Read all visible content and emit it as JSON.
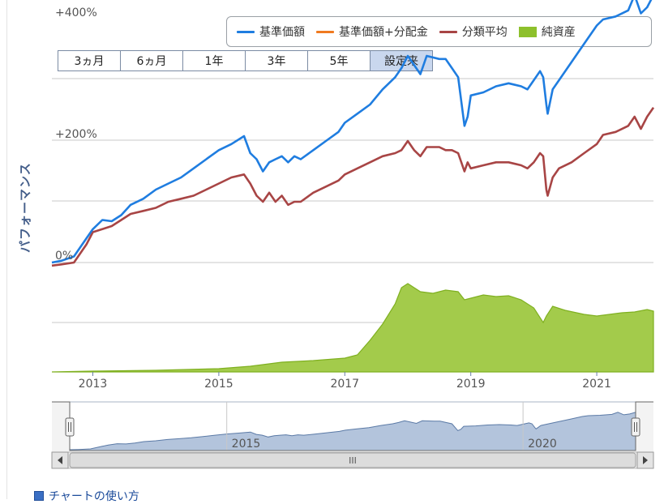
{
  "legend": {
    "items": [
      {
        "label": "基準価額",
        "color": "#1f7de0",
        "kind": "line"
      },
      {
        "label": "基準価額+分配金",
        "color": "#f07a20",
        "kind": "line"
      },
      {
        "label": "分類平均",
        "color": "#a84545",
        "kind": "line"
      },
      {
        "label": "純資産",
        "color": "#8dc02c",
        "kind": "area"
      }
    ]
  },
  "range_buttons": [
    {
      "label": "3ヵ月",
      "active": false
    },
    {
      "label": "6ヵ月",
      "active": false
    },
    {
      "label": "1年",
      "active": false
    },
    {
      "label": "3年",
      "active": false
    },
    {
      "label": "5年",
      "active": false
    },
    {
      "label": "設定来",
      "active": true
    }
  ],
  "help_link": "チャートの使い方",
  "chart_data": {
    "type": "line",
    "ylabel": "パフォーマンス",
    "ytick_labels": [
      "0%",
      "+200%",
      "+400%"
    ],
    "yticks": [
      0,
      200,
      400
    ],
    "ylim": [
      -10,
      600
    ],
    "xlim": [
      2012.35,
      2021.9
    ],
    "xtick_labels": [
      "2013",
      "2015",
      "2017",
      "2019",
      "2021"
    ],
    "xticks": [
      2013,
      2015,
      2017,
      2019,
      2021
    ],
    "grid": true,
    "legend_position": "top-right",
    "series": [
      {
        "name": "基準価額",
        "color": "#1f7de0",
        "x": [
          2012.35,
          2012.5,
          2012.7,
          2012.9,
          2013.0,
          2013.15,
          2013.3,
          2013.45,
          2013.6,
          2013.8,
          2014.0,
          2014.2,
          2014.4,
          2014.6,
          2014.8,
          2015.0,
          2015.2,
          2015.4,
          2015.5,
          2015.6,
          2015.7,
          2015.8,
          2015.9,
          2016.0,
          2016.1,
          2016.2,
          2016.3,
          2016.5,
          2016.7,
          2016.9,
          2017.0,
          2017.2,
          2017.4,
          2017.6,
          2017.8,
          2017.9,
          2018.0,
          2018.1,
          2018.2,
          2018.3,
          2018.5,
          2018.6,
          2018.7,
          2018.8,
          2018.9,
          2018.95,
          2019.0,
          2019.2,
          2019.4,
          2019.6,
          2019.8,
          2019.9,
          2020.0,
          2020.1,
          2020.15,
          2020.2,
          2020.22,
          2020.3,
          2020.4,
          2020.6,
          2020.8,
          2021.0,
          2021.1,
          2021.3,
          2021.5,
          2021.6,
          2021.7,
          2021.8,
          2021.9
        ],
        "y": [
          0,
          3,
          10,
          40,
          55,
          70,
          68,
          78,
          95,
          105,
          120,
          130,
          140,
          155,
          170,
          185,
          195,
          208,
          180,
          170,
          150,
          165,
          170,
          175,
          165,
          175,
          170,
          185,
          200,
          215,
          230,
          245,
          260,
          285,
          305,
          320,
          340,
          325,
          310,
          340,
          335,
          335,
          320,
          305,
          225,
          240,
          275,
          280,
          290,
          295,
          290,
          285,
          300,
          315,
          305,
          260,
          245,
          285,
          300,
          330,
          360,
          390,
          400,
          405,
          415,
          440,
          410,
          420,
          440
        ]
      },
      {
        "name": "分類平均",
        "color": "#a84545",
        "x": [
          2012.35,
          2012.5,
          2012.7,
          2012.9,
          2013.0,
          2013.15,
          2013.3,
          2013.45,
          2013.6,
          2013.8,
          2014.0,
          2014.2,
          2014.4,
          2014.6,
          2014.8,
          2015.0,
          2015.2,
          2015.4,
          2015.5,
          2015.6,
          2015.7,
          2015.8,
          2015.9,
          2016.0,
          2016.1,
          2016.2,
          2016.3,
          2016.5,
          2016.7,
          2016.9,
          2017.0,
          2017.2,
          2017.4,
          2017.6,
          2017.8,
          2017.9,
          2018.0,
          2018.1,
          2018.2,
          2018.3,
          2018.5,
          2018.6,
          2018.7,
          2018.8,
          2018.9,
          2018.95,
          2019.0,
          2019.2,
          2019.4,
          2019.6,
          2019.8,
          2019.9,
          2020.0,
          2020.1,
          2020.15,
          2020.2,
          2020.22,
          2020.3,
          2020.4,
          2020.6,
          2020.8,
          2021.0,
          2021.1,
          2021.3,
          2021.5,
          2021.6,
          2021.7,
          2021.8,
          2021.9
        ],
        "y": [
          -5,
          -3,
          0,
          30,
          50,
          55,
          60,
          70,
          80,
          85,
          90,
          100,
          105,
          110,
          120,
          130,
          140,
          145,
          130,
          110,
          100,
          115,
          100,
          110,
          95,
          100,
          100,
          115,
          125,
          135,
          145,
          155,
          165,
          175,
          180,
          185,
          200,
          185,
          175,
          190,
          190,
          185,
          185,
          180,
          150,
          165,
          155,
          160,
          165,
          165,
          160,
          155,
          165,
          180,
          175,
          120,
          110,
          140,
          155,
          165,
          180,
          195,
          210,
          215,
          225,
          240,
          220,
          240,
          255
        ]
      }
    ],
    "net_assets": {
      "name": "純資産",
      "color": "#8dc02c",
      "x": [
        2012.35,
        2013.0,
        2014.0,
        2015.0,
        2015.5,
        2016.0,
        2016.5,
        2017.0,
        2017.2,
        2017.4,
        2017.6,
        2017.8,
        2017.9,
        2018.0,
        2018.2,
        2018.4,
        2018.6,
        2018.8,
        2018.9,
        2019.0,
        2019.2,
        2019.4,
        2019.6,
        2019.8,
        2020.0,
        2020.1,
        2020.15,
        2020.2,
        2020.3,
        2020.5,
        2020.8,
        2021.0,
        2021.2,
        2021.4,
        2021.6,
        2021.8,
        2021.9
      ]
    },
    "navigator": {
      "xtick_labels": [
        "2015",
        "2020"
      ],
      "xticks": [
        2015,
        2020
      ],
      "scroll_label": "III"
    }
  }
}
